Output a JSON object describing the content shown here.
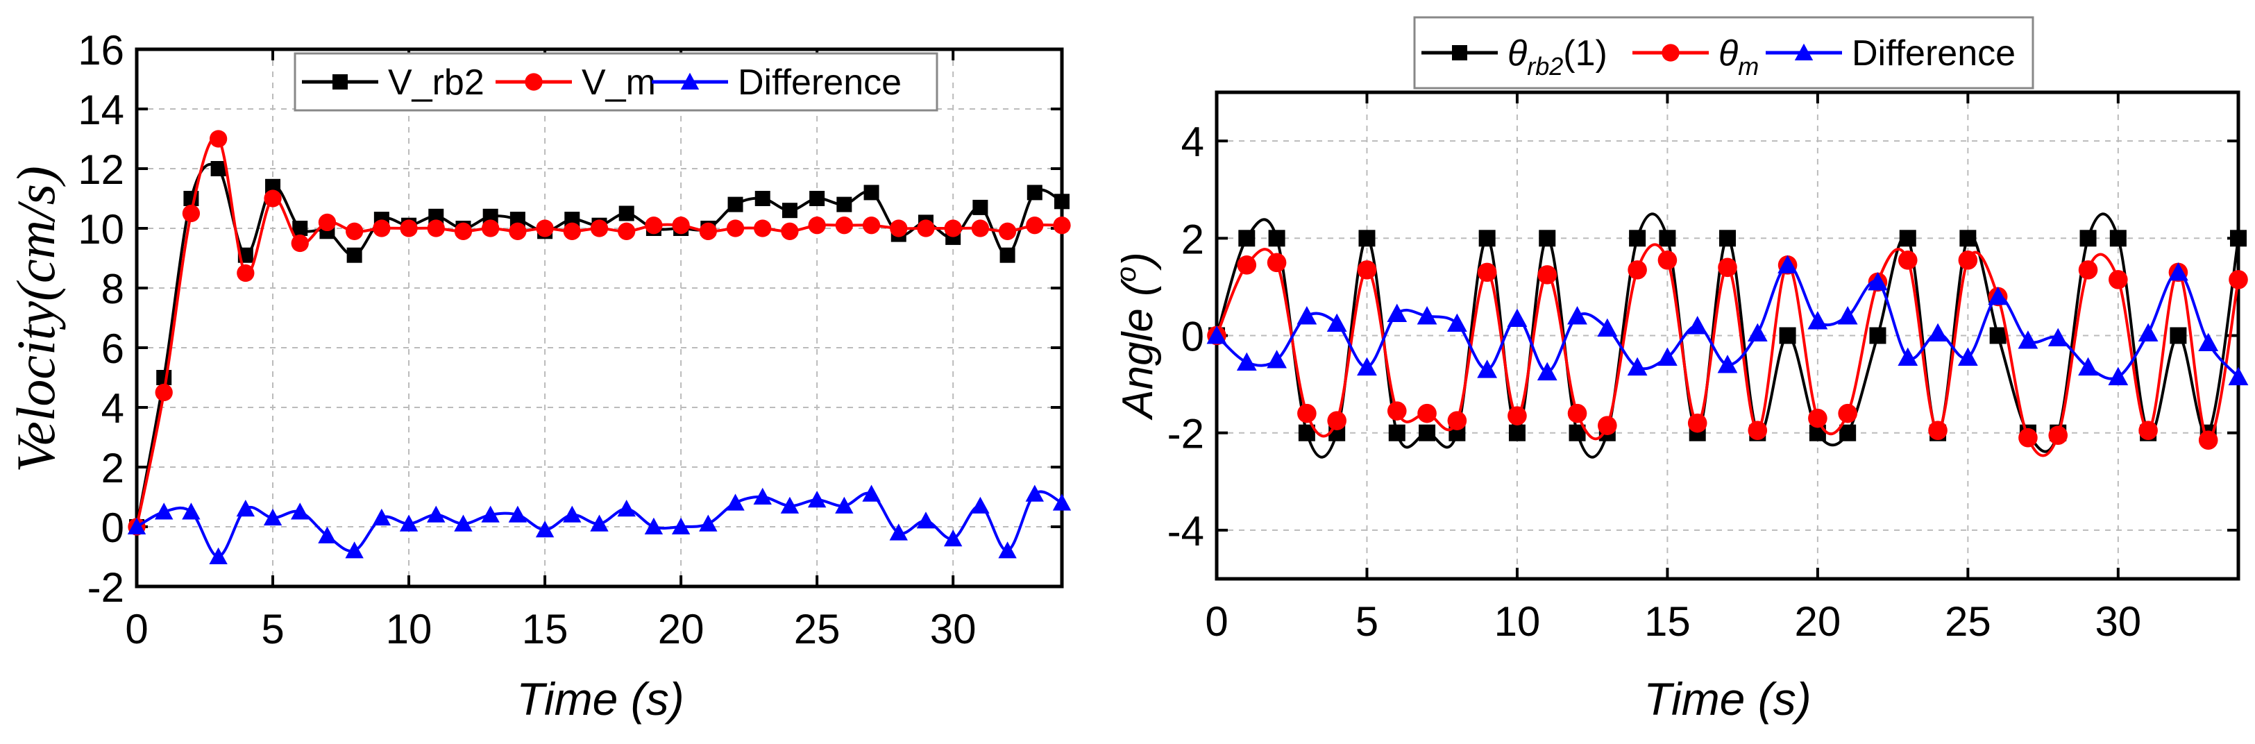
{
  "chart_data": [
    {
      "type": "line",
      "title": "",
      "xlabel": "Time (s)",
      "ylabel": "Velocity(cm/s)",
      "xlim": [
        0,
        34
      ],
      "ylim": [
        -2,
        16
      ],
      "xticks": [
        "0",
        "5",
        "10",
        "15",
        "20",
        "25",
        "30"
      ],
      "yticks": [
        "-2",
        "0",
        "2",
        "4",
        "6",
        "8",
        "10",
        "12",
        "14",
        "16"
      ],
      "grid": true,
      "legend_position": "top-center",
      "x": [
        0,
        1,
        2,
        3,
        4,
        5,
        6,
        7,
        8,
        9,
        10,
        11,
        12,
        13,
        14,
        15,
        16,
        17,
        18,
        19,
        20,
        21,
        22,
        23,
        24,
        25,
        26,
        27,
        28,
        29,
        30,
        31,
        32,
        33,
        34
      ],
      "series": [
        {
          "name": "V_rb2",
          "color": "#000000",
          "marker": "square",
          "values": [
            0,
            5.0,
            11.0,
            12.0,
            9.1,
            11.4,
            10.0,
            9.9,
            9.1,
            10.3,
            10.1,
            10.4,
            10.0,
            10.4,
            10.3,
            9.9,
            10.3,
            10.1,
            10.5,
            10.0,
            10.0,
            10.0,
            10.8,
            11.0,
            10.6,
            11.0,
            10.8,
            11.2,
            9.8,
            10.2,
            9.7,
            10.7,
            9.1,
            11.2,
            10.9
          ]
        },
        {
          "name": "V_m",
          "color": "#ff0000",
          "marker": "circle",
          "values": [
            0,
            4.5,
            10.5,
            13.0,
            8.5,
            11.0,
            9.5,
            10.2,
            9.9,
            10.0,
            10.0,
            10.0,
            9.9,
            10.0,
            9.9,
            10.0,
            9.9,
            10.0,
            9.9,
            10.1,
            10.1,
            9.9,
            10.0,
            10.0,
            9.9,
            10.1,
            10.1,
            10.1,
            10.0,
            10.0,
            10.0,
            10.0,
            9.9,
            10.1,
            10.1
          ]
        },
        {
          "name": "Difference",
          "color": "#0000ff",
          "marker": "triangle",
          "values": [
            0,
            0.5,
            0.5,
            -1.0,
            0.6,
            0.3,
            0.5,
            -0.3,
            -0.8,
            0.3,
            0.1,
            0.4,
            0.1,
            0.4,
            0.4,
            -0.1,
            0.4,
            0.1,
            0.6,
            0,
            0,
            0.1,
            0.8,
            1.0,
            0.7,
            0.9,
            0.7,
            1.1,
            -0.2,
            0.2,
            -0.4,
            0.7,
            -0.8,
            1.1,
            0.8
          ]
        }
      ]
    },
    {
      "type": "line",
      "title": "",
      "xlabel": "Time (s)",
      "ylabel": "Angle (",
      "ylabel_sup": "o",
      "ylabel_end": ")",
      "xlim": [
        0,
        34
      ],
      "ylim": [
        -5,
        5
      ],
      "xticks": [
        "0",
        "5",
        "10",
        "15",
        "20",
        "25",
        "30"
      ],
      "yticks": [
        "-4",
        "-2",
        "0",
        "2",
        "4"
      ],
      "grid": true,
      "legend_position": "above-top",
      "x": [
        0,
        1,
        2,
        3,
        4,
        5,
        6,
        7,
        8,
        9,
        10,
        11,
        12,
        13,
        14,
        15,
        16,
        17,
        18,
        19,
        20,
        21,
        22,
        23,
        24,
        25,
        26,
        27,
        28,
        29,
        30,
        31,
        32,
        33,
        34
      ],
      "series": [
        {
          "name": "θ",
          "name_sub": "rb2",
          "name_suffix": "(1)",
          "color": "#000000",
          "marker": "square",
          "values": [
            0,
            2,
            2,
            -2,
            -2,
            2,
            -2,
            -2,
            -2,
            2,
            -2,
            2,
            -2,
            -2,
            2,
            2,
            -2,
            2,
            -2,
            0,
            -2,
            -2,
            0,
            2,
            -2,
            2,
            0,
            -2,
            -2,
            2,
            2,
            -2,
            0,
            -2,
            2
          ]
        },
        {
          "name": "θ",
          "name_sub": "m",
          "name_suffix": "",
          "color": "#ff0000",
          "marker": "circle",
          "values": [
            0,
            1.45,
            1.5,
            -1.6,
            -1.75,
            1.35,
            -1.55,
            -1.6,
            -1.75,
            1.3,
            -1.65,
            1.25,
            -1.6,
            -1.85,
            1.35,
            1.55,
            -1.8,
            1.4,
            -1.95,
            1.45,
            -1.7,
            -1.6,
            1.1,
            1.55,
            -1.95,
            1.55,
            0.8,
            -2.1,
            -2.05,
            1.35,
            1.15,
            -1.95,
            1.3,
            -2.15,
            1.15
          ]
        },
        {
          "name": "Difference",
          "name_sub": "",
          "name_suffix": "",
          "color": "#0000ff",
          "marker": "triangle",
          "values": [
            0,
            -0.55,
            -0.5,
            0.4,
            0.25,
            -0.65,
            0.45,
            0.4,
            0.25,
            -0.7,
            0.35,
            -0.75,
            0.4,
            0.15,
            -0.65,
            -0.45,
            0.2,
            -0.6,
            0.05,
            1.45,
            0.3,
            0.4,
            1.1,
            -0.45,
            0.05,
            -0.45,
            0.8,
            -0.1,
            -0.05,
            -0.65,
            -0.85,
            0.05,
            1.3,
            -0.15,
            -0.85
          ]
        }
      ]
    }
  ]
}
